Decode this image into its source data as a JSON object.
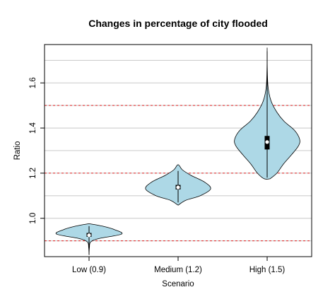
{
  "chart_data": {
    "type": "violin",
    "title": "Changes in percentage of city flooded",
    "xlabel": "Scenario",
    "ylabel": "Ratio",
    "categories": [
      "Low (0.9)",
      "Medium (1.2)",
      "High (1.5)"
    ],
    "ylim": [
      0.83,
      1.77
    ],
    "yticks": [
      1.0,
      1.2,
      1.4,
      1.6
    ],
    "ytick_labels": [
      "1.0",
      "1.2",
      "1.4",
      "1.6"
    ],
    "grid": true,
    "reference_lines": [
      {
        "y": 0.9,
        "color": "#e02020",
        "style": "dashed"
      },
      {
        "y": 1.2,
        "color": "#e02020",
        "style": "dashed"
      },
      {
        "y": 1.5,
        "color": "#e02020",
        "style": "dashed"
      }
    ],
    "fill_color": "#add8e6",
    "series": [
      {
        "category": "Low (0.9)",
        "min": 0.84,
        "q1": 0.918,
        "median": 0.925,
        "q3": 0.935,
        "max": 0.965,
        "density": [
          [
            0.84,
            0.0
          ],
          [
            0.87,
            0.012
          ],
          [
            0.895,
            0.05
          ],
          [
            0.91,
            0.3
          ],
          [
            0.93,
            1.0
          ],
          [
            0.95,
            0.78
          ],
          [
            0.965,
            0.42
          ],
          [
            0.975,
            0.05
          ]
        ]
      },
      {
        "category": "Medium (1.2)",
        "min": 1.07,
        "q1": 1.128,
        "median": 1.137,
        "q3": 1.148,
        "max": 1.21,
        "density": [
          [
            1.06,
            0.02
          ],
          [
            1.08,
            0.24
          ],
          [
            1.1,
            0.68
          ],
          [
            1.13,
            1.0
          ],
          [
            1.16,
            0.82
          ],
          [
            1.19,
            0.4
          ],
          [
            1.215,
            0.13
          ],
          [
            1.235,
            0.03
          ]
        ]
      },
      {
        "category": "High (1.5)",
        "min": 1.18,
        "q1": 1.305,
        "median": 1.338,
        "q3": 1.365,
        "max": 1.74,
        "density": [
          [
            1.175,
            0.09
          ],
          [
            1.2,
            0.3
          ],
          [
            1.24,
            0.5
          ],
          [
            1.28,
            0.74
          ],
          [
            1.32,
            0.96
          ],
          [
            1.35,
            1.0
          ],
          [
            1.39,
            0.84
          ],
          [
            1.43,
            0.52
          ],
          [
            1.47,
            0.3
          ],
          [
            1.52,
            0.12
          ],
          [
            1.58,
            0.03
          ],
          [
            1.66,
            0.005
          ],
          [
            1.745,
            0.0
          ]
        ]
      }
    ]
  }
}
